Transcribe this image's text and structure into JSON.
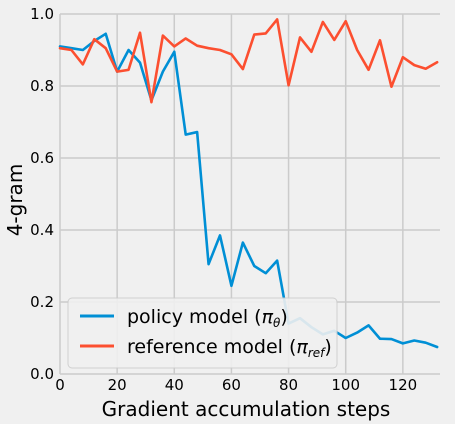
{
  "chart_data": {
    "type": "line",
    "title": "",
    "xlabel": "Gradient accumulation steps",
    "ylabel": "4-gram",
    "xlim": [
      0,
      133
    ],
    "ylim": [
      0.0,
      1.0
    ],
    "x_ticks": [
      0,
      20,
      40,
      60,
      80,
      100,
      120
    ],
    "y_ticks": [
      0.0,
      0.2,
      0.4,
      0.6,
      0.8,
      1.0
    ],
    "x_tick_labels": [
      "0",
      "20",
      "40",
      "60",
      "80",
      "100",
      "120"
    ],
    "y_tick_labels": [
      "0.0",
      "0.2",
      "0.4",
      "0.6",
      "0.8",
      "1.0"
    ],
    "grid": true,
    "legend_position": "lower-left",
    "legend_text": {
      "policy_prefix": "policy model (",
      "policy_symbol": "π",
      "policy_subscript": "θ",
      "policy_suffix": ")",
      "reference_prefix": "reference model (",
      "reference_symbol": "π",
      "reference_subscript": "ref",
      "reference_suffix": ")"
    },
    "series": [
      {
        "name": "policy model (πθ)",
        "color": "#008fd5",
        "x": [
          0,
          4,
          8,
          12,
          16,
          20,
          24,
          28,
          32,
          36,
          40,
          44,
          48,
          52,
          56,
          60,
          64,
          68,
          72,
          76,
          80,
          84,
          88,
          92,
          96,
          100,
          104,
          108,
          112,
          116,
          120,
          124,
          128,
          132
        ],
        "y": [
          0.91,
          0.905,
          0.9,
          0.925,
          0.945,
          0.84,
          0.9,
          0.865,
          0.76,
          0.84,
          0.895,
          0.665,
          0.672,
          0.305,
          0.385,
          0.245,
          0.365,
          0.3,
          0.28,
          0.315,
          0.14,
          0.155,
          0.13,
          0.11,
          0.12,
          0.1,
          0.115,
          0.135,
          0.098,
          0.097,
          0.085,
          0.093,
          0.087,
          0.075
        ]
      },
      {
        "name": "reference model (πref)",
        "color": "#fc4f30",
        "x": [
          0,
          4,
          8,
          12,
          16,
          20,
          24,
          28,
          32,
          36,
          40,
          44,
          48,
          52,
          56,
          60,
          64,
          68,
          72,
          76,
          80,
          84,
          88,
          92,
          96,
          100,
          104,
          108,
          112,
          116,
          120,
          124,
          128,
          132
        ],
        "y": [
          0.905,
          0.9,
          0.86,
          0.93,
          0.905,
          0.84,
          0.845,
          0.948,
          0.755,
          0.94,
          0.91,
          0.932,
          0.912,
          0.905,
          0.9,
          0.888,
          0.847,
          0.943,
          0.946,
          0.985,
          0.802,
          0.935,
          0.895,
          0.978,
          0.928,
          0.98,
          0.9,
          0.845,
          0.927,
          0.798,
          0.88,
          0.858,
          0.848,
          0.866
        ]
      }
    ]
  },
  "colors": {
    "background": "#f0f0f0",
    "grid": "#cbcbcb",
    "text": "#000000",
    "legend_bg": "#f0f0f0",
    "legend_border": "#cccccc"
  }
}
